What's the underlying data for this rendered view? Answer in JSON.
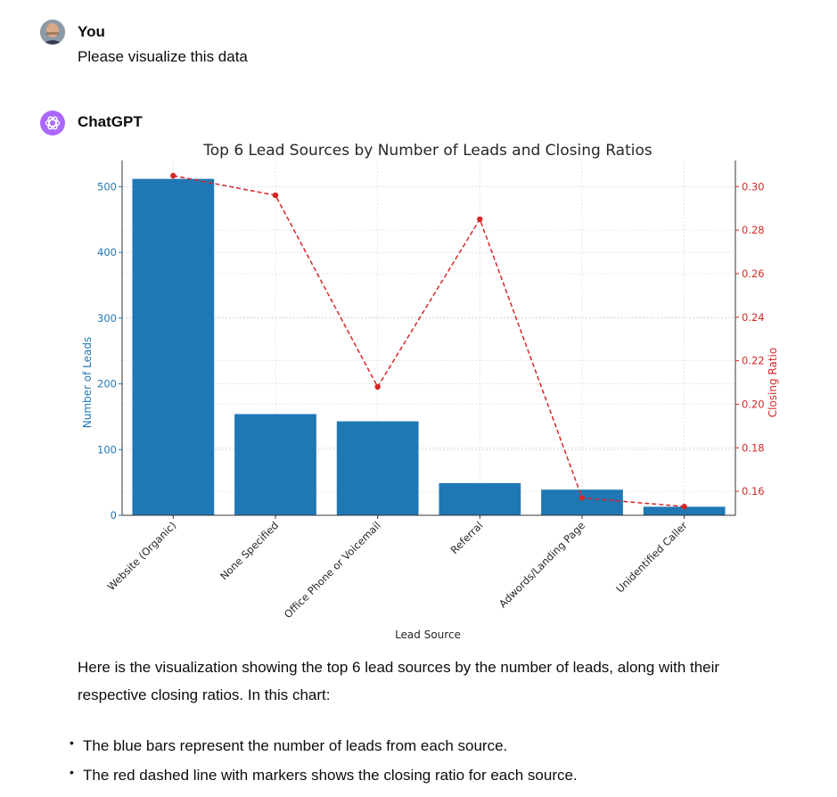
{
  "conversation": {
    "user": {
      "name": "You",
      "message": "Please visualize this data"
    },
    "assistant": {
      "name": "ChatGPT",
      "reply": "Here is the visualization showing the top 6 lead sources by the number of leads, along with their respective closing ratios. In this chart:",
      "bullets": [
        "The blue bars represent the number of leads from each source.",
        "The red dashed line with markers shows the closing ratio for each source."
      ]
    }
  },
  "icons": {
    "user_avatar": "user-avatar-photo",
    "assistant_avatar": "chatgpt-logo-icon"
  },
  "colors": {
    "bar": "#1f77b4",
    "line": "#d62728",
    "assistant_avatar_bg": "#ab68ff"
  },
  "chart_data": {
    "type": "bar",
    "title": "Top 6 Lead Sources by Number of Leads and Closing Ratios",
    "xlabel": "Lead Source",
    "ylabel": "Number of Leads",
    "y2label": "Closing Ratio",
    "categories": [
      "Website (Organic)",
      "None Specified",
      "Office Phone or Voicemail",
      "Referral",
      "Adwords/Landing Page",
      "Unidentified Caller"
    ],
    "series": [
      {
        "name": "Number of Leads",
        "type": "bar",
        "axis": "left",
        "values": [
          512,
          154,
          143,
          49,
          39,
          13
        ]
      },
      {
        "name": "Closing Ratio",
        "type": "line",
        "axis": "right",
        "style": "dashed-with-markers",
        "values": [
          0.305,
          0.296,
          0.208,
          0.285,
          0.157,
          0.153
        ]
      }
    ],
    "ylim": [
      0,
      540
    ],
    "y2lim": [
      0.149,
      0.312
    ],
    "yticks": [
      0,
      100,
      200,
      300,
      400,
      500
    ],
    "y2ticks": [
      0.16,
      0.18,
      0.2,
      0.22,
      0.24,
      0.26,
      0.28,
      0.3
    ],
    "ytick_labels": [
      "0",
      "100",
      "200",
      "300",
      "400",
      "500"
    ],
    "y2tick_labels": [
      "0.16",
      "0.18",
      "0.20",
      "0.22",
      "0.24",
      "0.26",
      "0.28",
      "0.30"
    ],
    "grid": true
  }
}
